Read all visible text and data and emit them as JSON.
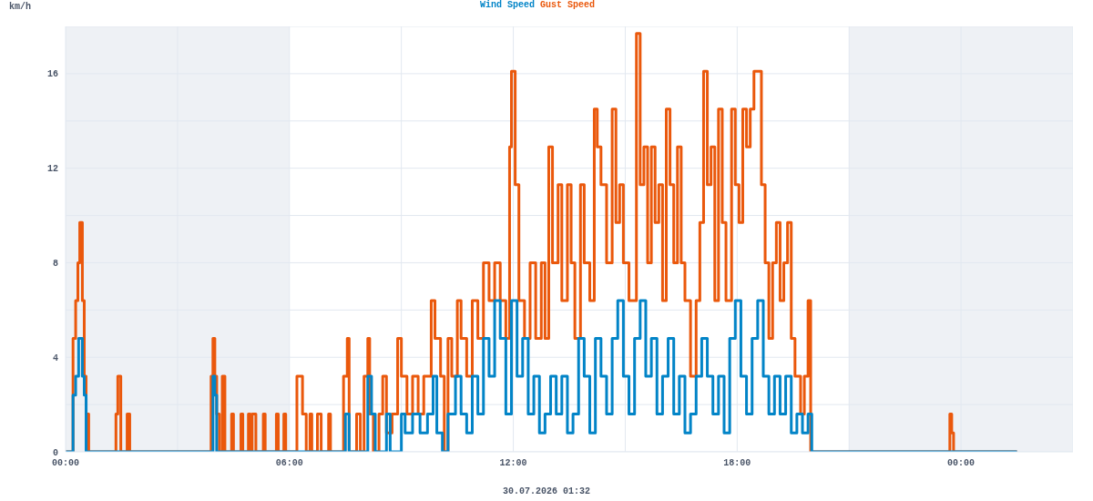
{
  "chart_data": {
    "type": "step",
    "ylabel": "km/h",
    "annotations": [
      "30.07.2026 01:32"
    ],
    "legend": "top",
    "grid": true,
    "marker": "none",
    "line_style": "solid",
    "xlim": [
      0,
      27
    ],
    "xticks": [
      {
        "value": 0,
        "label": "00:00"
      },
      {
        "value": 3,
        "label": null
      },
      {
        "value": 6,
        "label": "06:00"
      },
      {
        "value": 9,
        "label": null
      },
      {
        "value": 12,
        "label": "12:00"
      },
      {
        "value": 15,
        "label": null
      },
      {
        "value": 18,
        "label": "18:00"
      },
      {
        "value": 21,
        "label": null
      },
      {
        "value": 24,
        "label": "00:00"
      },
      {
        "value": 27,
        "label": null
      }
    ],
    "ylim": [
      0,
      18
    ],
    "yticks": [
      0,
      {
        "value": 2,
        "label": null
      },
      4,
      {
        "value": 6,
        "label": null
      },
      8,
      {
        "value": 10,
        "label": null
      },
      12,
      {
        "value": 14,
        "label": null
      },
      16,
      {
        "value": 18,
        "label": null
      }
    ],
    "bands": [
      {
        "axis": "x",
        "from": 0,
        "to": 6,
        "color": "#eef1f5"
      },
      {
        "axis": "x",
        "from": 21,
        "to": 27,
        "color": "#eef1f5"
      }
    ],
    "series": [
      {
        "name": "Wind Speed",
        "color": "#0284c7",
        "x": [
          0,
          0.2,
          0.27,
          0.35,
          0.45,
          0.5,
          0.55,
          3.95,
          4.0,
          4.05,
          7.5,
          7.6,
          8.1,
          8.2,
          8.3,
          8.6,
          8.7,
          9.0,
          9.1,
          9.3,
          9.5,
          9.7,
          9.85,
          9.95,
          10.1,
          10.25,
          10.45,
          10.6,
          10.75,
          10.9,
          11.05,
          11.2,
          11.35,
          11.5,
          11.65,
          11.8,
          11.95,
          12.1,
          12.25,
          12.4,
          12.55,
          12.7,
          12.85,
          13.0,
          13.15,
          13.3,
          13.45,
          13.6,
          13.75,
          13.9,
          14.05,
          14.2,
          14.35,
          14.5,
          14.65,
          14.8,
          14.95,
          15.1,
          15.25,
          15.4,
          15.55,
          15.7,
          15.85,
          16.0,
          16.15,
          16.3,
          16.45,
          16.6,
          16.75,
          16.9,
          17.05,
          17.2,
          17.35,
          17.5,
          17.65,
          17.8,
          17.95,
          18.1,
          18.25,
          18.4,
          18.55,
          18.7,
          18.85,
          19.0,
          19.15,
          19.3,
          19.45,
          19.6,
          19.75,
          19.9,
          20.0,
          25.5
        ],
        "values": [
          0,
          2.4,
          3.2,
          4.8,
          3.2,
          2.4,
          0,
          3.2,
          2.4,
          0,
          1.6,
          0,
          3.2,
          1.6,
          0,
          1.6,
          0,
          1.6,
          0.8,
          1.6,
          0.8,
          1.6,
          3.2,
          0.8,
          0,
          1.6,
          3.2,
          1.6,
          0.8,
          3.2,
          1.6,
          4.8,
          3.2,
          6.4,
          4.8,
          1.6,
          6.4,
          3.2,
          4.8,
          1.6,
          3.2,
          0.8,
          1.6,
          3.2,
          1.6,
          3.2,
          0.8,
          1.6,
          4.8,
          3.2,
          0.8,
          4.8,
          3.2,
          1.6,
          4.8,
          6.4,
          3.2,
          1.6,
          4.8,
          6.4,
          3.2,
          4.8,
          1.6,
          3.2,
          4.8,
          1.6,
          3.2,
          0.8,
          1.6,
          3.2,
          4.8,
          3.2,
          1.6,
          3.2,
          0.8,
          4.8,
          6.4,
          3.2,
          1.6,
          4.8,
          6.4,
          3.2,
          1.6,
          3.2,
          1.6,
          3.2,
          0.8,
          1.6,
          0.8,
          1.6,
          0,
          0
        ]
      },
      {
        "name": "Gust Speed",
        "color": "#ea580c",
        "x": [
          0,
          0.2,
          0.27,
          0.33,
          0.38,
          0.45,
          0.5,
          0.55,
          0.62,
          1.35,
          1.4,
          1.48,
          1.65,
          1.72,
          3.9,
          3.95,
          4.0,
          4.05,
          4.12,
          4.2,
          4.27,
          4.45,
          4.5,
          4.7,
          4.75,
          4.9,
          4.95,
          5.0,
          5.1,
          5.3,
          5.35,
          5.65,
          5.7,
          5.85,
          5.9,
          6.2,
          6.35,
          6.45,
          6.55,
          6.6,
          6.75,
          6.85,
          7.05,
          7.1,
          7.45,
          7.55,
          7.6,
          7.8,
          7.9,
          8.0,
          8.1,
          8.15,
          8.25,
          8.4,
          8.5,
          8.6,
          8.75,
          8.9,
          9.0,
          9.15,
          9.3,
          9.45,
          9.6,
          9.8,
          9.9,
          10.05,
          10.15,
          10.25,
          10.35,
          10.5,
          10.6,
          10.75,
          10.9,
          11.05,
          11.2,
          11.35,
          11.5,
          11.65,
          11.8,
          11.9,
          11.95,
          12.05,
          12.15,
          12.3,
          12.45,
          12.6,
          12.75,
          12.85,
          12.95,
          13.05,
          13.2,
          13.3,
          13.45,
          13.55,
          13.65,
          13.8,
          13.9,
          14.05,
          14.17,
          14.25,
          14.35,
          14.5,
          14.65,
          14.75,
          14.85,
          14.95,
          15.1,
          15.3,
          15.4,
          15.5,
          15.6,
          15.7,
          15.8,
          15.9,
          16.0,
          16.1,
          16.2,
          16.3,
          16.4,
          16.5,
          16.6,
          16.75,
          16.9,
          17.0,
          17.1,
          17.2,
          17.3,
          17.4,
          17.5,
          17.6,
          17.7,
          17.85,
          17.95,
          18.05,
          18.15,
          18.25,
          18.35,
          18.45,
          18.55,
          18.65,
          18.75,
          18.85,
          18.95,
          19.05,
          19.15,
          19.25,
          19.35,
          19.45,
          19.55,
          19.7,
          19.8,
          19.9,
          19.97,
          23.7,
          23.75,
          23.8,
          25.5
        ],
        "values": [
          0,
          4.8,
          6.4,
          8.0,
          9.7,
          6.4,
          3.2,
          1.6,
          0,
          1.6,
          3.2,
          0,
          1.6,
          0,
          3.2,
          4.8,
          3.2,
          1.6,
          0,
          3.2,
          0,
          1.6,
          0,
          1.6,
          0,
          1.6,
          0,
          1.6,
          0,
          1.6,
          0,
          1.6,
          0,
          1.6,
          0,
          3.2,
          1.6,
          0,
          1.6,
          0,
          1.6,
          0,
          1.6,
          0,
          3.2,
          4.8,
          0,
          1.6,
          0,
          3.2,
          4.8,
          1.6,
          0,
          1.6,
          3.2,
          0.8,
          1.6,
          4.8,
          3.2,
          1.6,
          3.2,
          1.6,
          3.2,
          6.4,
          4.8,
          3.2,
          0,
          4.8,
          3.2,
          6.4,
          4.8,
          3.2,
          6.4,
          4.8,
          8.0,
          6.4,
          8.0,
          6.4,
          4.8,
          12.9,
          16.1,
          11.3,
          6.4,
          4.8,
          8.0,
          4.8,
          8.0,
          4.8,
          12.9,
          8.0,
          11.3,
          6.4,
          11.3,
          8.0,
          4.8,
          11.3,
          8.0,
          6.4,
          14.5,
          12.9,
          11.3,
          8.0,
          14.5,
          9.7,
          11.3,
          8.0,
          6.4,
          17.7,
          11.3,
          12.9,
          8.0,
          12.9,
          9.7,
          11.3,
          6.4,
          14.5,
          11.3,
          8.0,
          12.9,
          8.0,
          6.4,
          3.2,
          6.4,
          9.7,
          16.1,
          11.3,
          12.9,
          6.4,
          14.5,
          9.7,
          6.4,
          14.5,
          11.3,
          9.7,
          14.5,
          12.9,
          14.5,
          16.1,
          16.1,
          11.3,
          8.0,
          4.8,
          8.0,
          9.7,
          6.4,
          8.0,
          9.7,
          4.8,
          3.2,
          1.6,
          3.2,
          6.4,
          0,
          1.6,
          0.8,
          0,
          0
        ]
      }
    ]
  }
}
